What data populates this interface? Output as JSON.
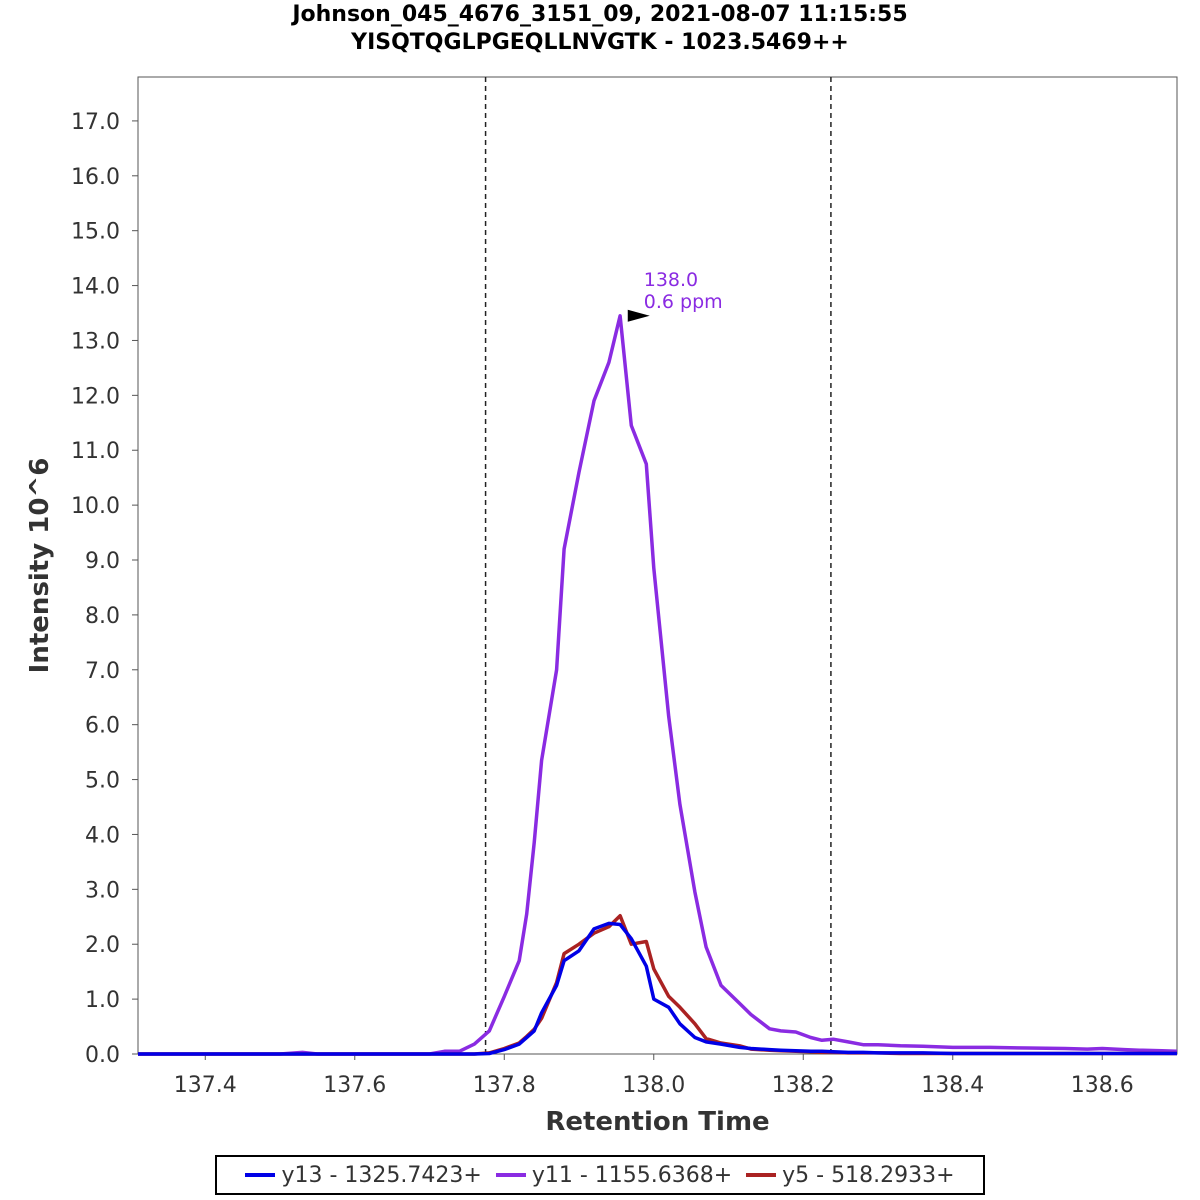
{
  "chart_data": {
    "type": "line",
    "title": "Johnson_045_4676_3151_09, 2021-08-07 11:15:55",
    "subtitle": "YISQTQGLPGEQLLNVGTK - 1023.5469++",
    "xlabel": "Retention Time",
    "ylabel": "Intensity 10^6",
    "xlim": [
      137.31,
      138.7
    ],
    "ylim": [
      0,
      17.8
    ],
    "xticks": [
      137.4,
      137.6,
      137.8,
      138.0,
      138.2,
      138.4,
      138.6
    ],
    "xtick_labels": [
      "137.4",
      "137.6",
      "137.8",
      "138.0",
      "138.2",
      "138.4",
      "138.6"
    ],
    "yticks": [
      0,
      1,
      2,
      3,
      4,
      5,
      6,
      7,
      8,
      9,
      10,
      11,
      12,
      13,
      14,
      15,
      16,
      17
    ],
    "ytick_labels": [
      "0.0",
      "1.0",
      "2.0",
      "3.0",
      "4.0",
      "5.0",
      "6.0",
      "7.0",
      "8.0",
      "9.0",
      "10.0",
      "11.0",
      "12.0",
      "13.0",
      "14.0",
      "15.0",
      "16.0",
      "17.0"
    ],
    "integration_bounds": [
      137.775,
      138.237
    ],
    "x": [
      137.31,
      137.35,
      137.4,
      137.45,
      137.5,
      137.53,
      137.55,
      137.6,
      137.65,
      137.7,
      137.72,
      137.74,
      137.76,
      137.78,
      137.8,
      137.82,
      137.83,
      137.84,
      137.85,
      137.87,
      137.88,
      137.9,
      137.92,
      137.94,
      137.955,
      137.97,
      137.99,
      138.0,
      138.02,
      138.035,
      138.055,
      138.07,
      138.09,
      138.115,
      138.13,
      138.155,
      138.17,
      138.19,
      138.21,
      138.225,
      138.24,
      138.26,
      138.28,
      138.3,
      138.33,
      138.36,
      138.4,
      138.45,
      138.5,
      138.55,
      138.58,
      138.6,
      138.63,
      138.65,
      138.68,
      138.7
    ],
    "series": [
      {
        "name": "y13 - 1325.7423+",
        "color": "#0000e6",
        "values": [
          0,
          0,
          0,
          0,
          0,
          0,
          0,
          0,
          0,
          0,
          0,
          0,
          0,
          0.01,
          0.08,
          0.18,
          0.3,
          0.42,
          0.75,
          1.25,
          1.7,
          1.88,
          2.28,
          2.38,
          2.36,
          2.1,
          1.6,
          1.0,
          0.85,
          0.55,
          0.3,
          0.22,
          0.18,
          0.12,
          0.1,
          0.08,
          0.07,
          0.06,
          0.05,
          0.05,
          0.04,
          0.03,
          0.03,
          0.02,
          0.02,
          0.02,
          0.01,
          0.01,
          0.01,
          0.01,
          0.01,
          0.01,
          0.01,
          0.01,
          0.01,
          0.01
        ]
      },
      {
        "name": "y11 - 1155.6368+",
        "color": "#8a2be2",
        "values": [
          0,
          0,
          0,
          0,
          0,
          0.03,
          0,
          0,
          0,
          0,
          0.05,
          0.05,
          0.18,
          0.42,
          1.05,
          1.7,
          2.55,
          3.85,
          5.35,
          7.0,
          9.2,
          10.6,
          11.9,
          12.6,
          13.45,
          11.45,
          10.75,
          8.85,
          6.15,
          4.55,
          2.95,
          1.95,
          1.25,
          0.92,
          0.72,
          0.46,
          0.42,
          0.4,
          0.3,
          0.25,
          0.27,
          0.22,
          0.17,
          0.17,
          0.15,
          0.14,
          0.12,
          0.12,
          0.11,
          0.1,
          0.09,
          0.1,
          0.08,
          0.07,
          0.06,
          0.05
        ]
      },
      {
        "name": "y5 - 518.2933+",
        "color": "#aa2222",
        "values": [
          0,
          0,
          0,
          0,
          0,
          0,
          0,
          0,
          0,
          0,
          0,
          0,
          0,
          0.02,
          0.1,
          0.2,
          0.32,
          0.45,
          0.65,
          1.3,
          1.83,
          2.0,
          2.2,
          2.32,
          2.52,
          2.0,
          2.05,
          1.55,
          1.05,
          0.85,
          0.55,
          0.28,
          0.2,
          0.15,
          0.09,
          0.07,
          0.06,
          0.05,
          0.04,
          0.03,
          0.03,
          0.02,
          0.02,
          0.02,
          0.01,
          0.01,
          0.01,
          0.01,
          0.01,
          0.01,
          0.01,
          0.01,
          0.01,
          0.01,
          0.01,
          0.01
        ]
      }
    ],
    "annotation": {
      "x": 138.0,
      "y": 13.45,
      "line1": "138.0",
      "line2": "0.6 ppm",
      "color": "#8a2be2"
    }
  },
  "legend": {
    "items": [
      {
        "label": "y13 - 1325.7423+",
        "color": "#0000e6"
      },
      {
        "label": "y11 - 1155.6368+",
        "color": "#8a2be2"
      },
      {
        "label": "y5 - 518.2933+",
        "color": "#aa2222"
      }
    ]
  }
}
